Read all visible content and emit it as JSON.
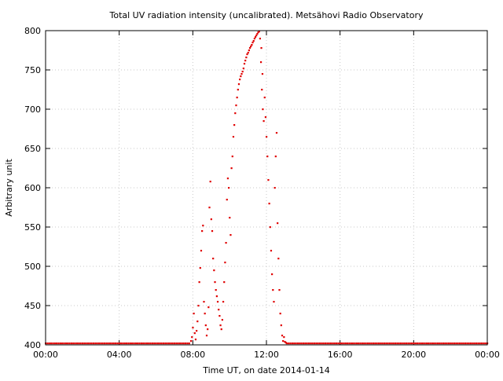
{
  "chart_data": {
    "type": "scatter",
    "title": "Total UV radiation intensity (uncalibrated). Metsähovi Radio Observatory",
    "xlabel": "Time UT, on date 2014-01-14",
    "ylabel": "Arbitrary unit",
    "x_unit": "hours UT",
    "xlim": [
      0,
      24
    ],
    "ylim": [
      400,
      800
    ],
    "x_ticks": [
      {
        "value": 0,
        "label": "00:00"
      },
      {
        "value": 4,
        "label": "04:00"
      },
      {
        "value": 8,
        "label": "08:00"
      },
      {
        "value": 12,
        "label": "12:00"
      },
      {
        "value": 16,
        "label": "16:00"
      },
      {
        "value": 20,
        "label": "20:00"
      },
      {
        "value": 24,
        "label": "00:00"
      }
    ],
    "y_ticks": [
      {
        "value": 400,
        "label": "400"
      },
      {
        "value": 450,
        "label": "450"
      },
      {
        "value": 500,
        "label": "500"
      },
      {
        "value": 550,
        "label": "550"
      },
      {
        "value": 600,
        "label": "600"
      },
      {
        "value": 650,
        "label": "650"
      },
      {
        "value": 700,
        "label": "700"
      },
      {
        "value": 750,
        "label": "750"
      },
      {
        "value": 800,
        "label": "800"
      }
    ],
    "grid": true,
    "marker_color": "#e00000",
    "baseline": {
      "x_start": 0,
      "x_end": 24,
      "step": 0.1,
      "y": 402
    },
    "series": [
      {
        "points": [
          [
            7.9,
            405
          ],
          [
            7.95,
            410
          ],
          [
            8.0,
            422
          ],
          [
            8.05,
            440
          ],
          [
            8.1,
            415
          ],
          [
            8.15,
            407
          ],
          [
            8.2,
            418
          ],
          [
            8.25,
            430
          ],
          [
            8.3,
            450
          ],
          [
            8.35,
            480
          ],
          [
            8.4,
            498
          ],
          [
            8.45,
            520
          ],
          [
            8.5,
            545
          ],
          [
            8.55,
            552
          ],
          [
            8.6,
            455
          ],
          [
            8.65,
            440
          ],
          [
            8.7,
            425
          ],
          [
            8.75,
            412
          ],
          [
            8.8,
            420
          ],
          [
            8.85,
            448
          ],
          [
            8.9,
            575
          ],
          [
            8.95,
            608
          ],
          [
            9.0,
            560
          ],
          [
            9.05,
            545
          ],
          [
            9.1,
            510
          ],
          [
            9.15,
            495
          ],
          [
            9.2,
            480
          ],
          [
            9.25,
            470
          ],
          [
            9.3,
            462
          ],
          [
            9.35,
            455
          ],
          [
            9.4,
            445
          ],
          [
            9.45,
            437
          ],
          [
            9.5,
            425
          ],
          [
            9.55,
            420
          ],
          [
            9.6,
            432
          ],
          [
            9.65,
            455
          ],
          [
            9.7,
            480
          ],
          [
            9.75,
            505
          ],
          [
            9.8,
            530
          ],
          [
            9.85,
            585
          ],
          [
            9.9,
            612
          ],
          [
            9.95,
            600
          ],
          [
            10.0,
            562
          ],
          [
            10.05,
            540
          ],
          [
            10.1,
            625
          ],
          [
            10.15,
            640
          ],
          [
            10.2,
            665
          ],
          [
            10.25,
            680
          ],
          [
            10.3,
            695
          ],
          [
            10.35,
            705
          ],
          [
            10.4,
            715
          ],
          [
            10.45,
            725
          ],
          [
            10.5,
            732
          ],
          [
            10.55,
            738
          ],
          [
            10.6,
            742
          ],
          [
            10.65,
            745
          ],
          [
            10.7,
            748
          ],
          [
            10.75,
            752
          ],
          [
            10.8,
            758
          ],
          [
            10.85,
            762
          ],
          [
            10.9,
            766
          ],
          [
            10.95,
            770
          ],
          [
            11.0,
            772
          ],
          [
            11.05,
            775
          ],
          [
            11.1,
            778
          ],
          [
            11.15,
            780
          ],
          [
            11.2,
            782
          ],
          [
            11.25,
            785
          ],
          [
            11.3,
            787
          ],
          [
            11.35,
            790
          ],
          [
            11.4,
            792
          ],
          [
            11.45,
            794
          ],
          [
            11.5,
            796
          ],
          [
            11.55,
            798
          ],
          [
            11.6,
            799
          ],
          [
            11.65,
            790
          ],
          [
            11.7,
            760
          ],
          [
            11.72,
            778
          ],
          [
            11.75,
            725
          ],
          [
            11.78,
            745
          ],
          [
            11.8,
            700
          ],
          [
            11.85,
            685
          ],
          [
            11.9,
            715
          ],
          [
            11.95,
            690
          ],
          [
            12.0,
            665
          ],
          [
            12.05,
            640
          ],
          [
            12.1,
            610
          ],
          [
            12.15,
            580
          ],
          [
            12.2,
            550
          ],
          [
            12.25,
            520
          ],
          [
            12.3,
            490
          ],
          [
            12.35,
            470
          ],
          [
            12.4,
            455
          ],
          [
            12.45,
            600
          ],
          [
            12.5,
            640
          ],
          [
            12.55,
            670
          ],
          [
            12.6,
            555
          ],
          [
            12.65,
            510
          ],
          [
            12.7,
            470
          ],
          [
            12.75,
            440
          ],
          [
            12.8,
            425
          ],
          [
            12.85,
            412
          ],
          [
            12.9,
            405
          ],
          [
            12.95,
            410
          ],
          [
            13.0,
            404
          ],
          [
            13.05,
            403
          ],
          [
            13.1,
            402
          ]
        ]
      }
    ]
  }
}
